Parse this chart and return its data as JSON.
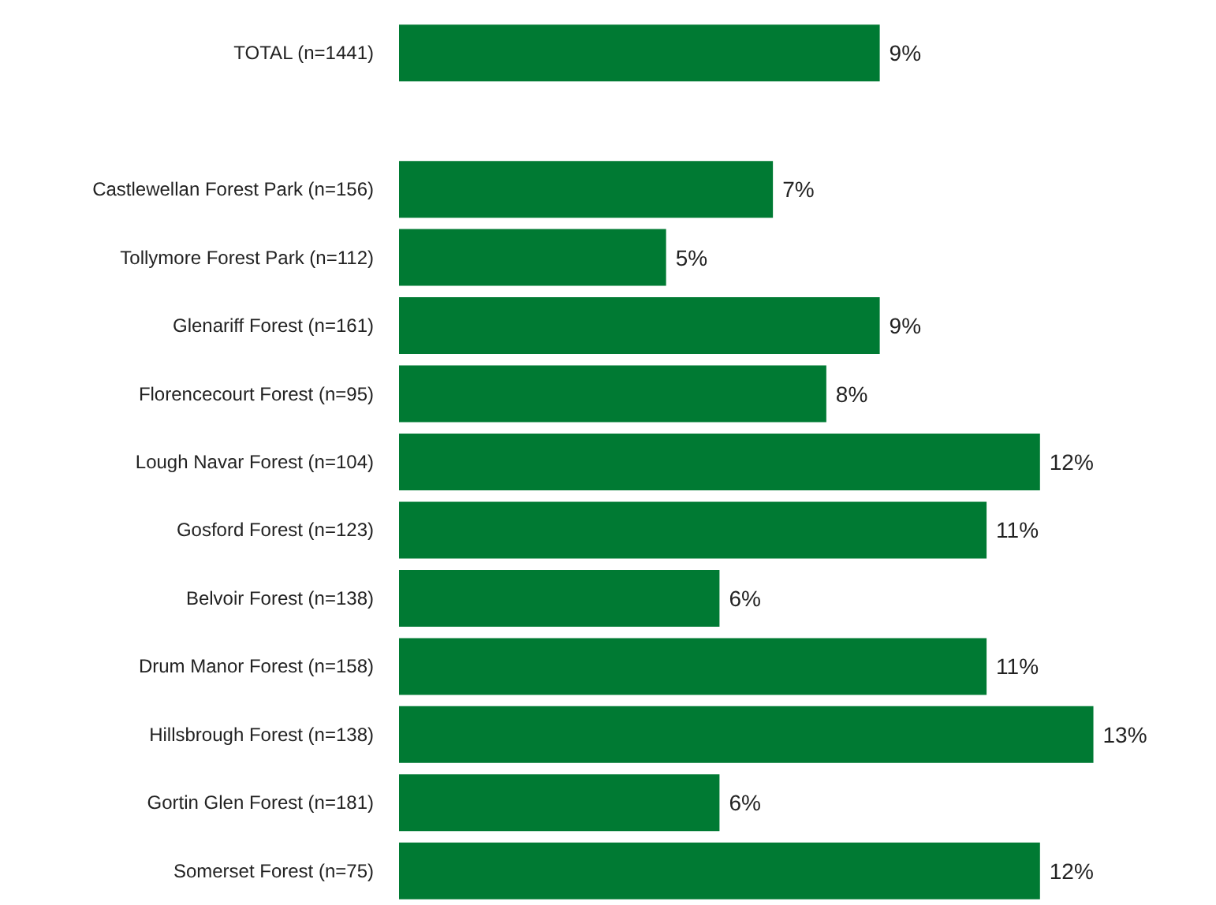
{
  "chart_data": {
    "type": "bar",
    "orientation": "horizontal",
    "categories": [
      "TOTAL (n=1441)",
      null,
      "Castlewellan Forest Park (n=156)",
      "Tollymore Forest Park (n=112)",
      "Glenariff Forest (n=161)",
      "Florencecourt Forest (n=95)",
      "Lough Navar Forest (n=104)",
      "Gosford Forest (n=123)",
      "Belvoir Forest (n=138)",
      "Drum Manor Forest (n=158)",
      "Hillsbrough Forest (n=138)",
      "Gortin Glen Forest (n=181)",
      "Somerset Forest (n=75)"
    ],
    "values": [
      9,
      null,
      7,
      5,
      9,
      8,
      12,
      11,
      6,
      11,
      13,
      6,
      12
    ],
    "value_labels": [
      "9%",
      null,
      "7%",
      "5%",
      "9%",
      "8%",
      "12%",
      "11%",
      "6%",
      "11%",
      "13%",
      "6%",
      "12%"
    ],
    "color": "#007a33"
  }
}
